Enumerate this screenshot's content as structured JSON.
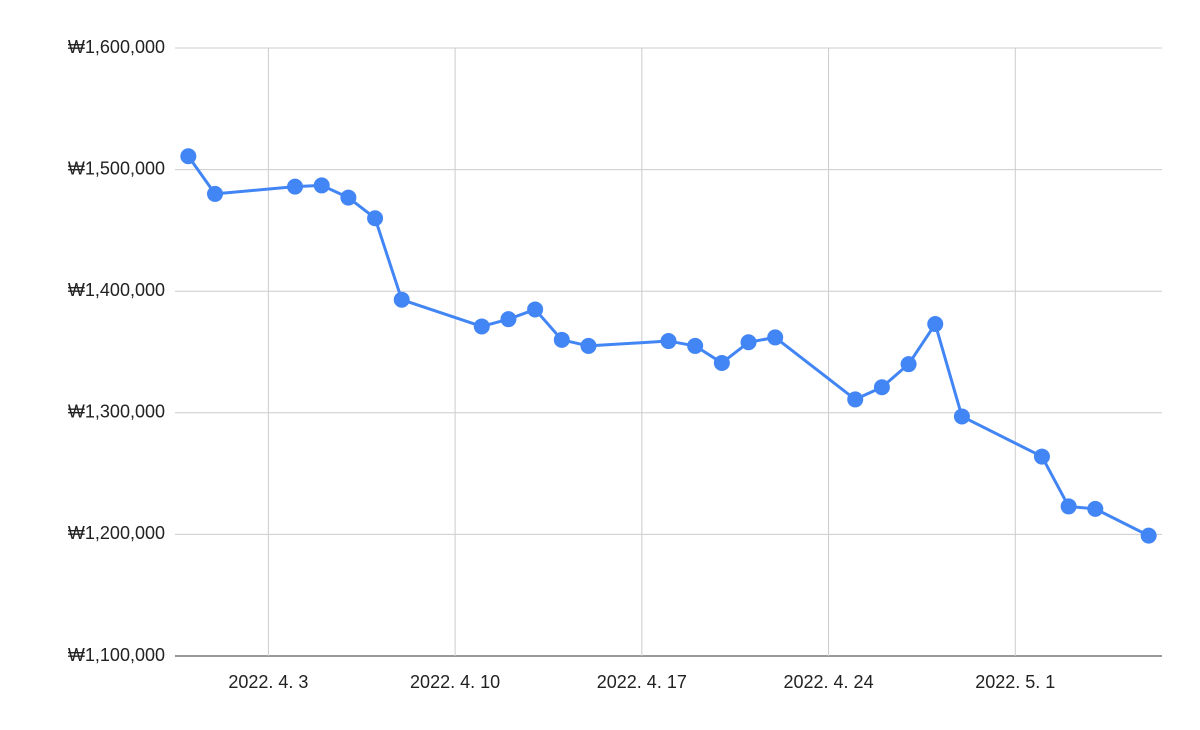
{
  "chart_data": {
    "type": "line",
    "x": [
      "2022-03-31",
      "2022-04-01",
      "2022-04-04",
      "2022-04-05",
      "2022-04-06",
      "2022-04-07",
      "2022-04-08",
      "2022-04-11",
      "2022-04-12",
      "2022-04-13",
      "2022-04-14",
      "2022-04-15",
      "2022-04-18",
      "2022-04-19",
      "2022-04-20",
      "2022-04-21",
      "2022-04-22",
      "2022-04-25",
      "2022-04-26",
      "2022-04-27",
      "2022-04-28",
      "2022-04-29",
      "2022-05-02",
      "2022-05-03",
      "2022-05-04",
      "2022-05-06"
    ],
    "values": [
      1511000,
      1480000,
      1486000,
      1487000,
      1477000,
      1460000,
      1393000,
      1371000,
      1377000,
      1385000,
      1360000,
      1355000,
      1359000,
      1355000,
      1341000,
      1358000,
      1362000,
      1311000,
      1321000,
      1340000,
      1373000,
      1297000,
      1264000,
      1223000,
      1221000,
      1199000
    ],
    "color": "#4285f4",
    "xlim": [
      "2022-03-30T12:00Z",
      "2022-05-06T12:00Z"
    ],
    "xticks": [
      {
        "value": "2022-04-03",
        "label": "2022. 4. 3"
      },
      {
        "value": "2022-04-10",
        "label": "2022. 4. 10"
      },
      {
        "value": "2022-04-17",
        "label": "2022. 4. 17"
      },
      {
        "value": "2022-04-24",
        "label": "2022. 4. 24"
      },
      {
        "value": "2022-05-01",
        "label": "2022. 5. 1"
      }
    ],
    "ylim": [
      1100000,
      1600000
    ],
    "yticks": [
      {
        "value": 1100000,
        "label": "₩1,100,000"
      },
      {
        "value": 1200000,
        "label": "₩1,200,000"
      },
      {
        "value": 1300000,
        "label": "₩1,300,000"
      },
      {
        "value": 1400000,
        "label": "₩1,400,000"
      },
      {
        "value": 1500000,
        "label": "₩1,500,000"
      },
      {
        "value": 1600000,
        "label": "₩1,600,000"
      }
    ],
    "grid": true
  }
}
